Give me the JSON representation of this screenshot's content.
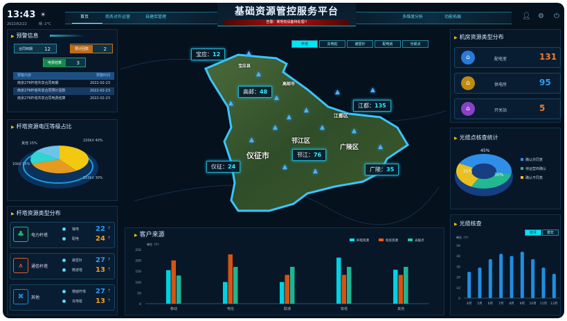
{
  "header": {
    "time": "13:43",
    "date": "2022/02/22",
    "weather_icon": "sun-icon",
    "weather": "晴 -2°C",
    "title": "基础资源管控服务平台",
    "alert": "告警：某地有设备待处理!!",
    "nav_left": [
      "首页",
      "商务对外运营",
      "自建库管理"
    ],
    "nav_right": [
      "多维度分析",
      "功能拓展"
    ],
    "active_nav": "首页",
    "icons": [
      "user-icon",
      "settings-icon",
      "power-icon"
    ]
  },
  "warning": {
    "title": "预警信息",
    "badges": [
      {
        "label": "合同到期",
        "value": "12"
      },
      {
        "label": "预计回款",
        "value": "2"
      },
      {
        "label": "电费结算",
        "value": "3"
      }
    ],
    "table": {
      "headers": [
        "预警内容",
        "预警时间"
      ],
      "rows": [
        [
          "南京276杆塔共享合同到期",
          "2022-02-23"
        ],
        [
          "南京276杆塔共享合同预计回款",
          "2022-02-23"
        ],
        [
          "南京276杆塔共享合同电费结算",
          "2022-02-23"
        ]
      ]
    }
  },
  "voltage": {
    "title": "杆塔资源电压等级占比",
    "chart_data": {
      "type": "pie",
      "slices": [
        {
          "label": "220kV",
          "value": 40,
          "color": "#f2c810"
        },
        {
          "label": "110kV",
          "value": 30,
          "color": "#e69a20"
        },
        {
          "label": "10kV",
          "value": 15,
          "color": "#2fd6d0"
        },
        {
          "label": "其他",
          "value": 15,
          "color": "#6cc4ea"
        }
      ]
    },
    "labels": [
      "220kV 40%",
      "110kV 30%",
      "10kV 15%",
      "其他 15%"
    ]
  },
  "tower_types": {
    "title": "杆塔资源类型分布",
    "groups": [
      {
        "name": "电力杆塔",
        "icon": "power-tower-icon",
        "color": "#27c070",
        "items": [
          {
            "label": "输电",
            "value": "22",
            "color": "#2a9df4"
          },
          {
            "label": "配电",
            "value": "24",
            "color": "#f0a020"
          }
        ]
      },
      {
        "name": "通信杆塔",
        "icon": "signal-tower-icon",
        "color": "#e0602a",
        "items": [
          {
            "label": "避雷针",
            "value": "27",
            "color": "#2a9df4"
          },
          {
            "label": "微波塔",
            "value": "13",
            "color": "#f0a020"
          }
        ]
      },
      {
        "name": "其他",
        "icon": "other-icon",
        "color": "#1a8ad8",
        "items": [
          {
            "label": "楼面杆塔",
            "value": "27",
            "color": "#2a9df4"
          },
          {
            "label": "充电桩",
            "value": "13",
            "color": "#f0a020"
          }
        ]
      }
    ]
  },
  "map": {
    "tabs": [
      "杆塔",
      "充电桩",
      "避雷针",
      "配电房",
      "光缆点"
    ],
    "active_tab": "杆塔",
    "labels": [
      {
        "name": "宝应",
        "value": "12"
      },
      {
        "name": "高邮",
        "value": "48"
      },
      {
        "name": "江都",
        "value": "135"
      },
      {
        "name": "仪征",
        "value": "24"
      },
      {
        "name": "邗江",
        "value": "76"
      },
      {
        "name": "广陵",
        "value": "35"
      }
    ],
    "districts": [
      "宝应县",
      "高邮市",
      "江都区",
      "仪征市",
      "邗江区",
      "广陵区"
    ]
  },
  "customer": {
    "title": "客户来源",
    "unit": "单位（个）",
    "chart_data": {
      "type": "bar",
      "categories": [
        "移动",
        "电信",
        "联通",
        "铁塔",
        "其他"
      ],
      "ylim": [
        0,
        250
      ],
      "yticks": [
        0,
        50,
        100,
        150,
        200,
        250
      ],
      "series": [
        {
          "name": "杆塔资源",
          "color": "#00e5f5",
          "values": [
            155,
            100,
            100,
            213,
            157
          ]
        },
        {
          "name": "机房资源",
          "color": "#f05a10",
          "values": [
            200,
            228,
            133,
            133,
            133
          ]
        },
        {
          "name": "光缆点",
          "color": "#22c7a0",
          "values": [
            130,
            170,
            170,
            170,
            170
          ]
        }
      ]
    }
  },
  "rooms": {
    "title": "机房资源类型分布",
    "items": [
      {
        "label": "配电室",
        "value": "131",
        "icon": "substation-icon",
        "color": "#2a7ad8",
        "vcolor": "#f07a30"
      },
      {
        "label": "供电所",
        "value": "95",
        "icon": "house-icon",
        "color": "#c08a10",
        "vcolor": "#2a9df4"
      },
      {
        "label": "开关站",
        "value": "5",
        "icon": "switch-station-icon",
        "color": "#8a40c8",
        "vcolor": "#f07a30"
      }
    ]
  },
  "fiber_stats": {
    "title": "光缆点核查统计",
    "chart_data": {
      "type": "pie",
      "slices": [
        {
          "label": "确认并同意",
          "value": 45,
          "color": "#2f8fe8"
        },
        {
          "label": "待运营商确认",
          "value": 30,
          "color": "#22b890"
        },
        {
          "label": "确认不同意",
          "value": 25,
          "color": "#e8c020"
        }
      ]
    },
    "pct": [
      "45%",
      "30%",
      "25%"
    ]
  },
  "fiber_check": {
    "title": "光缆核查",
    "buttons": [
      "按月",
      "按年"
    ],
    "active_button": "按月",
    "unit": "单位（个）",
    "chart_data": {
      "type": "bar",
      "categories": [
        "4月",
        "5月",
        "6月",
        "7月",
        "8月",
        "9月",
        "10月",
        "11月",
        "12月"
      ],
      "values": [
        25,
        29,
        37,
        42,
        40,
        44,
        37,
        29,
        23
      ],
      "ylim": [
        0,
        50
      ],
      "yticks": [
        0,
        10,
        20,
        30,
        40,
        50
      ],
      "color": "#1f8ee0"
    }
  }
}
